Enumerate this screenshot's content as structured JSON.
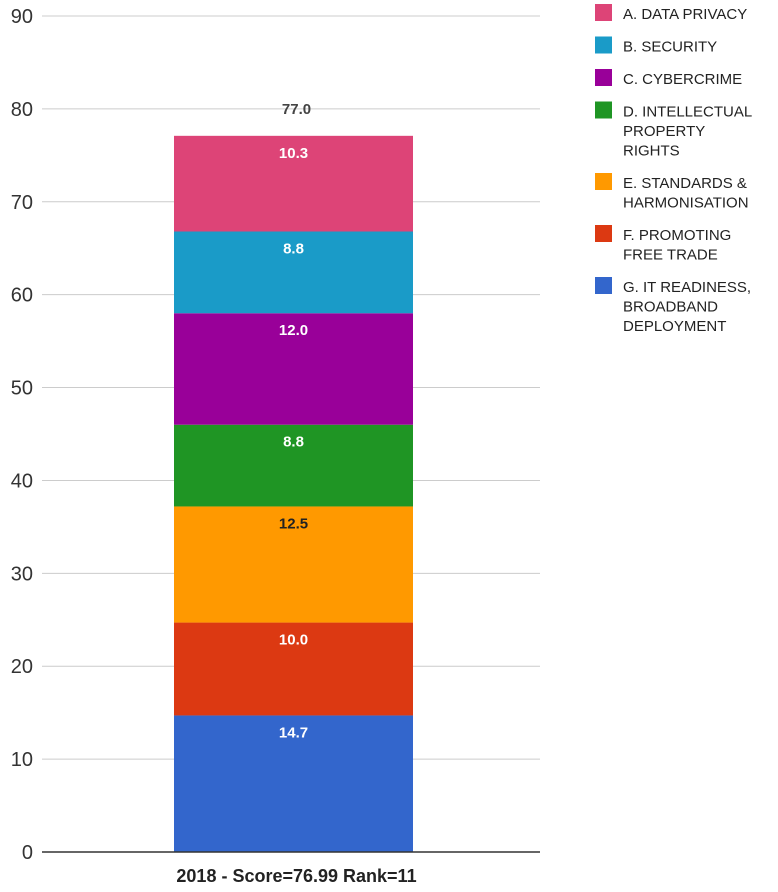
{
  "chart_data": {
    "type": "bar",
    "stacked": true,
    "categories": [
      "2018 - Score=76.99 Rank=11"
    ],
    "total_label": "77.0",
    "ylim": [
      0,
      90
    ],
    "yticks": [
      0,
      10,
      20,
      30,
      40,
      50,
      60,
      70,
      80,
      90
    ],
    "grid": true,
    "legend_position": "right",
    "series": [
      {
        "name": "G. IT READINESS, BROADBAND DEPLOYMENT",
        "legend_lines": [
          "G. IT READINESS,",
          "BROADBAND",
          "DEPLOYMENT"
        ],
        "values": [
          14.7
        ],
        "label": "14.7",
        "color": "#3366cc",
        "label_color": "#ffffff"
      },
      {
        "name": "F. PROMOTING FREE TRADE",
        "legend_lines": [
          "F. PROMOTING",
          "FREE TRADE"
        ],
        "values": [
          10.0
        ],
        "label": "10.0",
        "color": "#dc3912",
        "label_color": "#ffffff"
      },
      {
        "name": "E. STANDARDS & HARMONISATION",
        "legend_lines": [
          "E. STANDARDS &",
          "HARMONISATION"
        ],
        "values": [
          12.5
        ],
        "label": "12.5",
        "color": "#ff9900",
        "label_color": "#222222"
      },
      {
        "name": "D. INTELLECTUAL PROPERTY RIGHTS",
        "legend_lines": [
          "D. INTELLECTUAL",
          "PROPERTY",
          "RIGHTS"
        ],
        "values": [
          8.8
        ],
        "label": "8.8",
        "color": "#1f9524",
        "label_color": "#ffffff"
      },
      {
        "name": "C. CYBERCRIME",
        "legend_lines": [
          "C. CYBERCRIME"
        ],
        "values": [
          12.0
        ],
        "label": "12.0",
        "color": "#990099",
        "label_color": "#ffffff"
      },
      {
        "name": "B. SECURITY",
        "legend_lines": [
          "B. SECURITY"
        ],
        "values": [
          8.8
        ],
        "label": "8.8",
        "color": "#1a9bc8",
        "label_color": "#ffffff"
      },
      {
        "name": "A. DATA PRIVACY",
        "legend_lines": [
          "A. DATA PRIVACY"
        ],
        "values": [
          10.3
        ],
        "label": "10.3",
        "color": "#dd4477",
        "label_color": "#ffffff"
      }
    ],
    "legend_order": [
      "A. DATA PRIVACY",
      "B. SECURITY",
      "C. CYBERCRIME",
      "D. INTELLECTUAL PROPERTY RIGHTS",
      "E. STANDARDS & HARMONISATION",
      "F. PROMOTING FREE TRADE",
      "G. IT READINESS, BROADBAND DEPLOYMENT"
    ]
  }
}
